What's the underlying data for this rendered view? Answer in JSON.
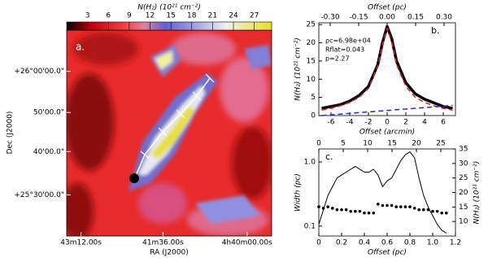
{
  "chart_data": [
    {
      "type": "image",
      "colorbar_label": "N(H₂) (10²¹ cm⁻²)",
      "clim": [
        0,
        29.5
      ],
      "cticks": [
        3,
        6,
        9,
        12,
        15,
        18,
        21,
        24,
        27
      ],
      "panel_label": "a.",
      "xlabel": "RA (J2000)",
      "ylabel": "Dec (J2000)",
      "xtick_labels": [
        "43m12.00s",
        "41m36.00s",
        "4h40m00.00s"
      ],
      "ytick_labels": [
        "+26°00'00.0\"",
        "50'00.0\"",
        "40'00.0\"",
        "+25°30'00.0\""
      ]
    },
    {
      "type": "line",
      "panel_label": "b.",
      "xlabel": "Offset (arcmin)",
      "x2label": "Offset (pc)",
      "ylabel": "N(H₂) (10²¹ cm⁻²)",
      "annotations": [
        "ρc=6.98e+04",
        "Rflat=0.043",
        "p=2.27"
      ],
      "xlim": [
        -7.3,
        7.3
      ],
      "xticks": [
        -6,
        -4,
        -2,
        0,
        2,
        4,
        6
      ],
      "x2lim": [
        -0.36,
        0.36
      ],
      "x2ticks": [
        {
          "value": -0.3,
          "label": "-0.30"
        },
        {
          "value": -0.15,
          "label": "-0.15"
        },
        {
          "value": 0,
          "label": "0.00"
        },
        {
          "value": 0.15,
          "label": "0.15"
        },
        {
          "value": 0.3,
          "label": "0.30"
        }
      ],
      "ylim": [
        0,
        25.5
      ],
      "yticks": [
        0,
        5,
        10,
        15,
        20,
        25
      ],
      "x": [
        -7,
        -6,
        -5,
        -4,
        -3,
        -2,
        -1,
        -0.5,
        0,
        0.5,
        1,
        2,
        3,
        4,
        5,
        6,
        7
      ],
      "series": [
        {
          "color": "#000000",
          "style": "solid",
          "width": 3.5,
          "values": [
            2,
            2.5,
            3,
            4,
            5.5,
            8,
            14,
            20,
            24.5,
            21,
            15,
            9,
            6,
            4.5,
            3.5,
            2.5,
            2
          ]
        },
        {
          "color": "#e02020",
          "style": "dashed",
          "width": 1.5,
          "values": [
            1.5,
            2,
            2.7,
            3.6,
            5,
            7.5,
            13.5,
            19.5,
            24,
            20,
            14,
            8,
            5,
            3.6,
            2.7,
            2,
            1.5
          ]
        },
        {
          "color": "#2030d0",
          "style": "dashed",
          "width": 1.5,
          "values": [
            0,
            0.2,
            0.4,
            0.6,
            0.8,
            1,
            1.2,
            1.3,
            1.4,
            1.5,
            1.6,
            1.8,
            2,
            2.2,
            2.4,
            2.6,
            2.8
          ]
        }
      ]
    },
    {
      "type": "line",
      "panel_label": "c.",
      "xlabel": "Offset (pc)",
      "ylabel": "Width (pc)",
      "y2label": "N(H₂) (10²¹ cm⁻²)",
      "xlim": [
        0,
        1.2
      ],
      "xticks": [
        0,
        {
          "value": 0.2,
          "label": "0.2"
        },
        {
          "value": 0.4,
          "label": "0.4"
        },
        {
          "value": 0.6,
          "label": "0.6"
        },
        {
          "value": 0.8,
          "label": "0.8"
        },
        {
          "value": 1,
          "label": "1.0"
        },
        {
          "value": 1.2,
          "label": "1.2"
        }
      ],
      "xticks_label_note_free": null,
      "x2lim": [
        0,
        28
      ],
      "x2ticks": [
        0,
        5,
        10,
        15,
        20,
        25
      ],
      "ylog": true,
      "ylim": [
        0.07,
        1.6
      ],
      "yticks": [
        {
          "value": 0.1,
          "label": "0.1"
        },
        {
          "value": 1,
          "label": "1.0"
        }
      ],
      "y2lim": [
        5,
        35
      ],
      "y2ticks": [
        10,
        15,
        20,
        25,
        30,
        35
      ],
      "x": [
        0,
        0.04,
        0.08,
        0.12,
        0.16,
        0.2,
        0.24,
        0.28,
        0.32,
        0.36,
        0.4,
        0.44,
        0.48,
        0.52,
        0.56,
        0.6,
        0.64,
        0.68,
        0.72,
        0.76,
        0.8,
        0.84,
        0.88,
        0.92,
        0.96,
        1,
        1.04,
        1.08,
        1.12
      ],
      "series": [
        {
          "color": "#000000",
          "style": "dots",
          "axis": "y",
          "values": [
            0.2,
            0.19,
            0.2,
            0.19,
            0.18,
            0.18,
            0.18,
            0.17,
            0.17,
            0.17,
            0.16,
            0.16,
            0.16,
            0.22,
            0.21,
            0.21,
            0.21,
            0.2,
            0.2,
            0.2,
            0.2,
            0.19,
            0.18,
            0.18,
            0.18,
            0.17,
            0.17,
            0.16,
            0.16
          ]
        },
        {
          "color": "#000000",
          "style": "solid",
          "width": 1,
          "axis": "y2",
          "values": [
            9,
            14,
            19,
            22,
            25,
            26,
            27,
            28,
            29,
            28,
            27,
            27,
            28,
            26,
            22,
            24,
            25,
            28,
            31,
            33,
            34,
            32,
            25,
            19,
            15,
            12,
            9,
            7,
            6
          ]
        }
      ]
    }
  ]
}
